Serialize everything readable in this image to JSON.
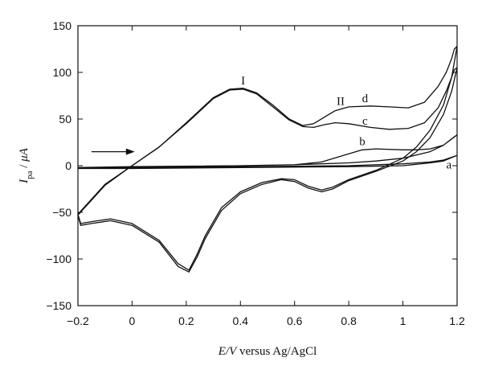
{
  "chart_data": {
    "type": "line",
    "xlabel": {
      "italic": "E/V",
      "rest": " versus Ag/AgCl"
    },
    "ylabel": {
      "base": "I",
      "sub": "pa",
      "rest": " /",
      "unit": " μA"
    },
    "xlim": [
      -0.2,
      1.2
    ],
    "ylim": [
      -150,
      150
    ],
    "xticks": [
      -0.2,
      0,
      0.2,
      0.4,
      0.6,
      0.8,
      1,
      1.2
    ],
    "xtick_labels": [
      "−0.2",
      "0",
      "0.2",
      "0.4",
      "0.6",
      "0.8",
      "1",
      "1.2"
    ],
    "yticks": [
      -150,
      -100,
      -50,
      0,
      50,
      100,
      150
    ],
    "ytick_labels": [
      "−150",
      "−100",
      "−50",
      "0",
      "50",
      "100",
      "150"
    ],
    "grid": false,
    "annotations": [
      {
        "text": "I",
        "x": 0.41,
        "y": 87
      },
      {
        "text": "II",
        "x": 0.77,
        "y": 65
      },
      {
        "text": "d",
        "x": 0.86,
        "y": 68
      },
      {
        "text": "c",
        "x": 0.86,
        "y": 44
      },
      {
        "text": "b",
        "x": 0.85,
        "y": 22
      },
      {
        "text": "a",
        "x": 1.17,
        "y": -3
      }
    ],
    "arrow": {
      "from": [
        -0.15,
        15
      ],
      "to": [
        0.01,
        15
      ]
    },
    "series": [
      {
        "label": "d",
        "x": [
          -0.2,
          -0.1,
          0,
          0.1,
          0.2,
          0.3,
          0.36,
          0.41,
          0.46,
          0.52,
          0.58,
          0.63,
          0.67,
          0.71,
          0.75,
          0.8,
          0.88,
          0.95,
          1.02,
          1.08,
          1.13,
          1.16,
          1.18,
          1.19,
          1.2,
          1.18,
          1.15,
          1.1,
          1.05,
          1.0,
          0.9,
          0.8,
          0.74,
          0.7,
          0.65,
          0.6,
          0.55,
          0.48,
          0.4,
          0.33,
          0.27,
          0.24,
          0.21,
          0.17,
          0.1,
          0.0,
          -0.08,
          -0.15,
          -0.19,
          -0.2
        ],
        "y": [
          -52,
          -20,
          0,
          20,
          46,
          73,
          82,
          83,
          78,
          65,
          50,
          43,
          45,
          52,
          59,
          63,
          64,
          63,
          62,
          68,
          85,
          100,
          115,
          125,
          128,
          95,
          65,
          38,
          20,
          8,
          -5,
          -15,
          -23,
          -26,
          -22,
          -15,
          -14,
          -18,
          -28,
          -45,
          -75,
          -95,
          -112,
          -105,
          -80,
          -62,
          -57,
          -60,
          -62,
          -52
        ]
      },
      {
        "label": "c",
        "x": [
          -0.2,
          -0.1,
          0,
          0.1,
          0.2,
          0.3,
          0.36,
          0.41,
          0.46,
          0.52,
          0.58,
          0.63,
          0.67,
          0.71,
          0.75,
          0.8,
          0.88,
          0.95,
          1.02,
          1.08,
          1.13,
          1.16,
          1.18,
          1.19,
          1.2,
          1.18,
          1.15,
          1.1,
          1.05,
          1.0,
          0.9,
          0.8,
          0.74,
          0.7,
          0.65,
          0.6,
          0.55,
          0.48,
          0.4,
          0.33,
          0.27,
          0.24,
          0.21,
          0.17,
          0.1,
          0.0,
          -0.08,
          -0.15,
          -0.19,
          -0.2
        ],
        "y": [
          -53,
          -21,
          0,
          20,
          45,
          72,
          81,
          82,
          77,
          63,
          49,
          42,
          41,
          44,
          46,
          45,
          41,
          39,
          40,
          46,
          62,
          80,
          95,
          103,
          105,
          80,
          55,
          30,
          15,
          5,
          -6,
          -16,
          -25,
          -28,
          -24,
          -17,
          -15,
          -20,
          -30,
          -48,
          -78,
          -98,
          -114,
          -108,
          -82,
          -64,
          -59,
          -62,
          -64,
          -53
        ]
      },
      {
        "label": "b",
        "x": [
          -0.2,
          0,
          0.4,
          0.6,
          0.7,
          0.78,
          0.85,
          0.9,
          1.0,
          1.05,
          1.1,
          1.15,
          1.19,
          1.2,
          1.15,
          1.1,
          1.0,
          0.9,
          0.8,
          0.6,
          0.4,
          0.2,
          0,
          -0.2
        ],
        "y": [
          -2,
          -1,
          0,
          1,
          4,
          11,
          17,
          18,
          17,
          17,
          18,
          22,
          31,
          33,
          22,
          15,
          8,
          5,
          3,
          1,
          0,
          -1,
          -2,
          -2
        ]
      },
      {
        "label": "a",
        "x": [
          -0.2,
          0,
          0.4,
          0.8,
          1.0,
          1.1,
          1.15,
          1.19,
          1.2,
          1.15,
          1.1,
          1.0,
          0.8,
          0.4,
          0,
          -0.2
        ],
        "y": [
          -3,
          -2,
          -1,
          0,
          2,
          4,
          6,
          10,
          11,
          5,
          3,
          0,
          -1,
          -2,
          -3,
          -3
        ]
      }
    ]
  }
}
